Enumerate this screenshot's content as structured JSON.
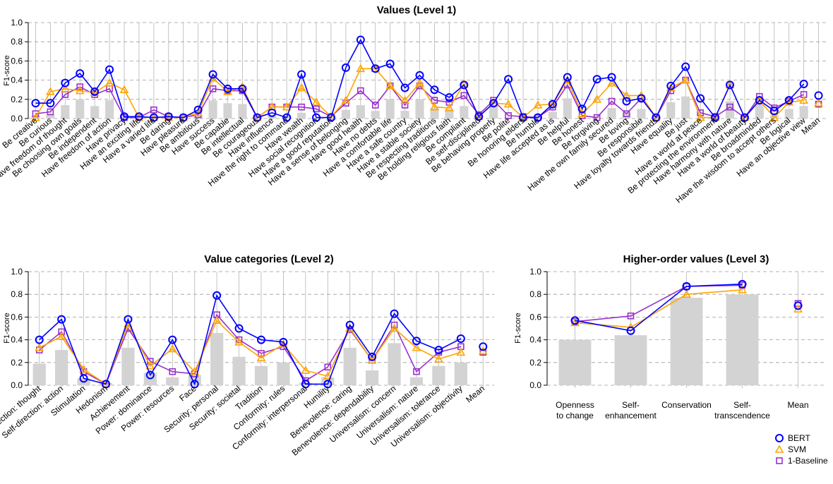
{
  "colors": {
    "BERT": "#0000ff",
    "SVM": "#ffa500",
    "1-Baseline": "#9932cc",
    "bars": "#d3d3d3"
  },
  "legend": {
    "placement": "bottom-right",
    "entries": [
      {
        "name": "BERT",
        "marker": "circle"
      },
      {
        "name": "SVM",
        "marker": "triangle"
      },
      {
        "name": "1-Baseline",
        "marker": "square"
      }
    ]
  },
  "chart_data": [
    {
      "type": "bar+line",
      "title": "Values (Level 1)",
      "ylabel": "F1-score",
      "ylim": [
        0,
        1
      ],
      "yticks": [
        "0.0",
        "0.2",
        "0.4",
        "0.6",
        "0.8",
        "1.0"
      ],
      "grid": "horizontal dashed",
      "categories": [
        "Be creative",
        "Be curious",
        "Have freedom of thought",
        "Be choosing own goals",
        "Be independent",
        "Have freedom of action",
        "Have privacy",
        "Have an exciting life",
        "Have a varied life",
        "Be daring",
        "Have pleasure",
        "Be ambitious",
        "Have success",
        "Be capable",
        "Be intellectual",
        "Be courageous",
        "Have influence",
        "Have the right to command",
        "Have wealth",
        "Have social recognition",
        "Have a good reputation",
        "Have a sense of belonging",
        "Have good health",
        "Have no debts",
        "Have a comfortable life",
        "Have a safe country",
        "Have a stable society",
        "Be respecting traditions",
        "Be holding religious faith",
        "Be compliant",
        "Be self-disciplined",
        "Be behaving properly",
        "Be polite",
        "Be honoring elders",
        "Be humble",
        "Have life accepted as is",
        "Be helpful",
        "Be honest",
        "Be forgiving",
        "Have the own family secured",
        "Be loving",
        "Be responsible",
        "Have loyalty towards friends",
        "Have equality",
        "Be just",
        "Have a world at peace",
        "Be protecting the environment",
        "Have harmony with nature",
        "Have a world of beauty",
        "Be broadminded",
        "Have the wisdom to accept others",
        "Be logical",
        "Have an objective view",
        "Mean"
      ],
      "bars": [
        0.03,
        0.04,
        0.14,
        0.2,
        0.13,
        0.19,
        0.02,
        0.01,
        0.01,
        0.01,
        0.01,
        0.03,
        0.19,
        0.16,
        0.15,
        0.01,
        0.04,
        0.03,
        0.06,
        0.01,
        0.01,
        0.09,
        0.14,
        0.08,
        0.2,
        0.08,
        0.2,
        0.11,
        0.1,
        0.13,
        0.01,
        0.14,
        0.01,
        0.01,
        0.03,
        0.07,
        0.21,
        0.01,
        0.01,
        0.11,
        0.06,
        0.1,
        0.01,
        0.17,
        0.23,
        0.01,
        0.01,
        0.18,
        0.01,
        0.15,
        0.03,
        0.1,
        0.13
      ],
      "series": [
        {
          "name": "BERT",
          "values": [
            0.16,
            0.16,
            0.37,
            0.47,
            0.28,
            0.51,
            0.02,
            0.02,
            0.01,
            0.02,
            0.01,
            0.09,
            0.46,
            0.31,
            0.31,
            0.01,
            0.06,
            0.01,
            0.46,
            0.01,
            0.01,
            0.53,
            0.82,
            0.52,
            0.57,
            0.32,
            0.45,
            0.3,
            0.22,
            0.35,
            0.02,
            0.16,
            0.41,
            0.01,
            0.01,
            0.15,
            0.43,
            0.1,
            0.41,
            0.43,
            0.18,
            0.21,
            0.01,
            0.34,
            0.54,
            0.21,
            0.01,
            0.35,
            0.01,
            0.19,
            0.08,
            0.19,
            0.36,
            0.24
          ]
        },
        {
          "name": "SVM",
          "values": [
            0.01,
            0.28,
            0.31,
            0.29,
            0.27,
            0.37,
            0.3,
            0.01,
            0.01,
            0.01,
            0.01,
            0.06,
            0.42,
            0.28,
            0.33,
            0.01,
            0.12,
            0.12,
            0.32,
            0.17,
            0.02,
            0.19,
            0.52,
            0.52,
            0.34,
            0.19,
            0.37,
            0.12,
            0.11,
            0.36,
            0.02,
            0.16,
            0.15,
            0.01,
            0.14,
            0.15,
            0.4,
            0.05,
            0.2,
            0.37,
            0.24,
            0.24,
            0.01,
            0.32,
            0.4,
            0.01,
            0.01,
            0.35,
            0.01,
            0.19,
            0.01,
            0.17,
            0.19,
            0.16
          ]
        },
        {
          "name": "1-Baseline",
          "values": [
            0.05,
            0.07,
            0.25,
            0.33,
            0.25,
            0.31,
            0.01,
            0.01,
            0.09,
            0.02,
            0.01,
            0.04,
            0.31,
            0.29,
            0.29,
            0.01,
            0.12,
            0.12,
            0.12,
            0.1,
            0.02,
            0.16,
            0.29,
            0.14,
            0.34,
            0.14,
            0.34,
            0.19,
            0.17,
            0.24,
            0.04,
            0.19,
            0.03,
            0.02,
            0.01,
            0.12,
            0.35,
            0.03,
            0.01,
            0.18,
            0.05,
            0.21,
            0.01,
            0.29,
            0.4,
            0.06,
            0.02,
            0.12,
            0.01,
            0.23,
            0.11,
            0.18,
            0.25,
            0.15
          ]
        }
      ]
    },
    {
      "type": "bar+line",
      "title": "Value categories (Level 2)",
      "ylabel": "F1-score",
      "ylim": [
        0,
        1
      ],
      "yticks": [
        "0.0",
        "0.2",
        "0.4",
        "0.6",
        "0.8",
        "1.0"
      ],
      "grid": "horizontal dashed",
      "categories": [
        "Self-direction: thought",
        "Self-direction: action",
        "Stimulation",
        "Hedonism",
        "Achievement",
        "Power: dominance",
        "Power: resources",
        "Face",
        "Security: personal",
        "Security: societal",
        "Tradition",
        "Conformity: rules",
        "Conformity: interpersonal",
        "Humility",
        "Benevolence: caring",
        "Benevolence: dependability",
        "Universalism: concern",
        "Universalism: nature",
        "Universalism: tolerance",
        "Universalism: objectivity",
        "Mean"
      ],
      "bars": [
        0.19,
        0.31,
        0.06,
        0.02,
        0.33,
        0.11,
        0.07,
        0.09,
        0.46,
        0.25,
        0.17,
        0.2,
        0.02,
        0.07,
        0.33,
        0.13,
        0.37,
        0.07,
        0.17,
        0.2
      ],
      "series": [
        {
          "name": "BERT",
          "values": [
            0.4,
            0.58,
            0.06,
            0.01,
            0.58,
            0.09,
            0.4,
            0.01,
            0.79,
            0.5,
            0.4,
            0.38,
            0.01,
            0.01,
            0.53,
            0.25,
            0.63,
            0.39,
            0.31,
            0.41,
            0.34
          ]
        },
        {
          "name": "SVM",
          "values": [
            0.33,
            0.43,
            0.14,
            0.01,
            0.54,
            0.17,
            0.32,
            0.12,
            0.57,
            0.38,
            0.24,
            0.36,
            0.13,
            0.08,
            0.5,
            0.22,
            0.5,
            0.33,
            0.23,
            0.29,
            0.3
          ]
        },
        {
          "name": "1-Baseline",
          "values": [
            0.31,
            0.47,
            0.12,
            0.01,
            0.5,
            0.21,
            0.12,
            0.1,
            0.62,
            0.4,
            0.28,
            0.34,
            0.04,
            0.16,
            0.49,
            0.22,
            0.53,
            0.12,
            0.29,
            0.34,
            0.29
          ]
        }
      ]
    },
    {
      "type": "bar+line",
      "title": "Higher-order values (Level 3)",
      "ylabel": "F1-score",
      "ylim": [
        0,
        1
      ],
      "yticks": [
        "0.0",
        "0.2",
        "0.4",
        "0.6",
        "0.8",
        "1.0"
      ],
      "grid": "horizontal dashed",
      "categories": [
        [
          "Openness",
          "to change"
        ],
        [
          "Self-",
          "enhancement"
        ],
        [
          "Conservation"
        ],
        [
          "Self-",
          "transcendence"
        ],
        [
          "Mean"
        ]
      ],
      "bars": [
        0.4,
        0.44,
        0.77,
        0.8
      ],
      "series": [
        {
          "name": "BERT",
          "values": [
            0.57,
            0.48,
            0.87,
            0.89,
            0.7
          ]
        },
        {
          "name": "SVM",
          "values": [
            0.55,
            0.51,
            0.8,
            0.84,
            0.67
          ]
        },
        {
          "name": "1-Baseline",
          "values": [
            0.56,
            0.61,
            0.87,
            0.88,
            0.72
          ]
        }
      ]
    }
  ]
}
